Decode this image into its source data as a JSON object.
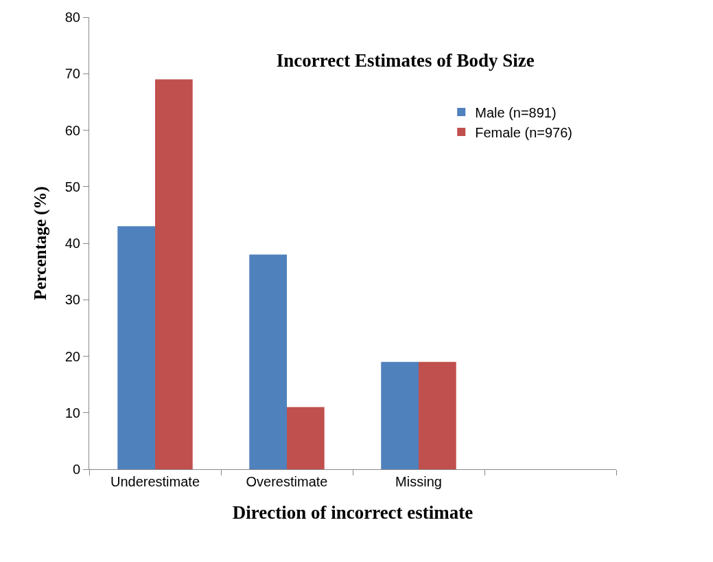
{
  "chart_data": {
    "type": "bar",
    "title": "Incorrect Estimates of Body Size",
    "xlabel": "Direction of incorrect estimate",
    "ylabel": "Percentage (%)",
    "categories": [
      "Underestimate",
      "Overestimate",
      "Missing",
      null
    ],
    "series": [
      {
        "name": "Male (n=891)",
        "color": "#4f81bd",
        "values": [
          43,
          38,
          19,
          null
        ]
      },
      {
        "name": "Female (n=976)",
        "color": "#c0504d",
        "values": [
          69,
          11,
          19,
          null
        ]
      }
    ],
    "ylim": [
      0,
      80
    ],
    "yticks": [
      0,
      10,
      20,
      30,
      40,
      50,
      60,
      70,
      80
    ],
    "legend": "top right"
  }
}
